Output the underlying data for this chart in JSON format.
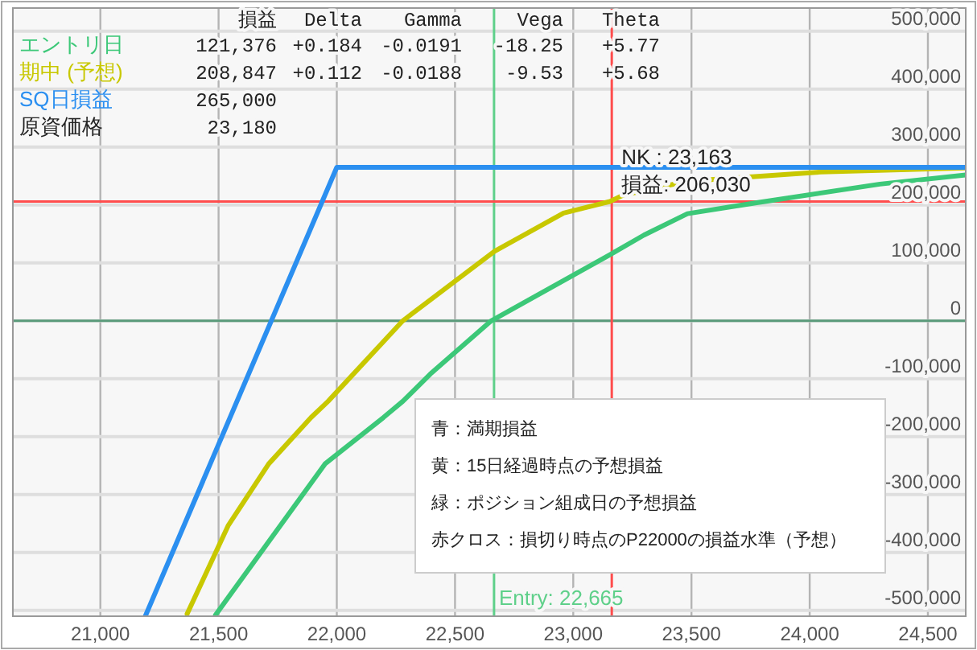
{
  "chart_data": {
    "type": "line",
    "xlim": [
      20630,
      24660
    ],
    "ylim": [
      -510000,
      540000
    ],
    "xticks": [
      {
        "value": 21000,
        "label": "21,000"
      },
      {
        "value": 21500,
        "label": "21,500"
      },
      {
        "value": 22000,
        "label": "22,000"
      },
      {
        "value": 22500,
        "label": "22,500"
      },
      {
        "value": 23000,
        "label": "23,000"
      },
      {
        "value": 23500,
        "label": "23,500"
      },
      {
        "value": 24000,
        "label": "24,000"
      },
      {
        "value": 24500,
        "label": "24,500"
      }
    ],
    "yticks": [
      {
        "value": 500000,
        "label": "500,000"
      },
      {
        "value": 400000,
        "label": "400,000"
      },
      {
        "value": 300000,
        "label": "300,000"
      },
      {
        "value": 200000,
        "label": "200,000"
      },
      {
        "value": 100000,
        "label": "100,000"
      },
      0,
      {
        "value": -100000,
        "label": "-100,000"
      },
      {
        "value": -200000,
        "label": "-200,000"
      },
      {
        "value": -300000,
        "label": "-300,000"
      },
      {
        "value": -400000,
        "label": "-400,000"
      },
      {
        "value": -500000,
        "label": "-500,000"
      }
    ],
    "grid": true,
    "series": [
      {
        "name": "エントリ日",
        "color": "#3cc878",
        "x": [
          21487,
          21950,
          22197,
          22279,
          22395,
          22653,
          23163,
          23299,
          23483,
          23776,
          24297,
          24660
        ],
        "values": [
          -508000,
          -247000,
          -167000,
          -139000,
          -92000,
          0,
          116000,
          148000,
          185000,
          204000,
          236000,
          252000
        ]
      },
      {
        "name": "期中 (予想)",
        "color": "#c8c800",
        "x": [
          21367,
          21540,
          21712,
          21891,
          21963,
          22279,
          22667,
          22959,
          23155,
          23211,
          23483,
          24048,
          24660
        ],
        "values": [
          -506000,
          -354000,
          -247000,
          -167000,
          -139000,
          0,
          120000,
          186000,
          206000,
          217000,
          241000,
          257000,
          264000
        ]
      },
      {
        "name": "SQ日損益",
        "color": "#2b8ff0",
        "x": [
          21190,
          22000,
          24660
        ],
        "values": [
          -510000,
          265000,
          265000
        ]
      }
    ],
    "ref_lines": [
      {
        "axis": "y",
        "value": 0,
        "color": "#5a9a7a"
      },
      {
        "axis": "x",
        "value": 22665,
        "label": "Entry: 22,665",
        "color": "#5fd08a"
      },
      {
        "axis": "x",
        "value": 23163,
        "color": "#ff4d4d"
      },
      {
        "axis": "y",
        "value": 206030,
        "color": "#ff4d4d"
      }
    ],
    "annotations": [
      "損益  Delta  Gamma  Vega  Theta",
      "121,376  +0.184  -0.0191  -18.25  +5.77",
      "208,847  +0.112  -0.0188  -9.53  +5.68",
      "265,000",
      "原資価格  23,180",
      "青：満期損益",
      "黄：15日経過時点の予想損益",
      "緑：ポジション組成日の予想損益",
      "赤クロス：損切り時点のP22000の損益水準（予想）",
      {
        "text": "NK : 23,163",
        "x": 23163,
        "y": 206030
      },
      {
        "text": "損益: 206,030",
        "x": 23163,
        "y": 206030
      }
    ]
  }
}
